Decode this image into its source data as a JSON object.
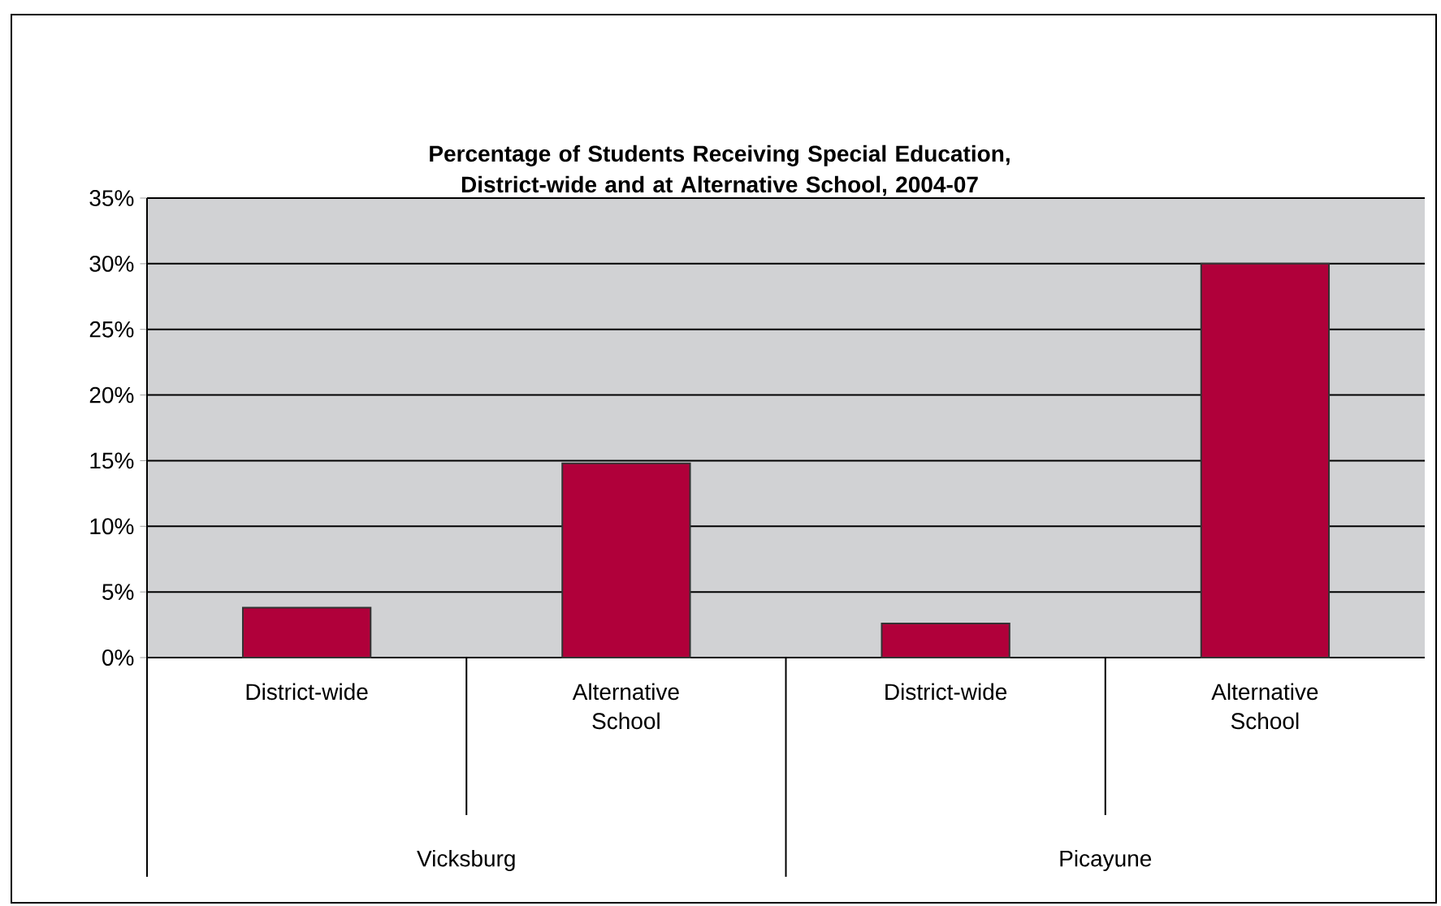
{
  "chart_data": {
    "type": "bar",
    "title": "Percentage of Students Receiving Special Education, District-wide and at Alternative School, 2004-07",
    "categories": [
      "District-wide",
      "Alternative School",
      "District-wide",
      "Alternative School"
    ],
    "values": [
      3.8,
      14.8,
      2.6,
      30.0
    ],
    "color": "#b0003a",
    "ylim": [
      0,
      35
    ],
    "yticks": [
      {
        "value": 0,
        "label": "0%"
      },
      {
        "value": 5,
        "label": "5%"
      },
      {
        "value": 10,
        "label": "10%"
      },
      {
        "value": 15,
        "label": "15%"
      },
      {
        "value": 20,
        "label": "20%"
      },
      {
        "value": 25,
        "label": "25%"
      },
      {
        "value": 30,
        "label": "30%"
      },
      {
        "value": 35,
        "label": "35%"
      }
    ],
    "grid": "y",
    "annotations": [
      "Vicksburg",
      "Picayune"
    ]
  }
}
